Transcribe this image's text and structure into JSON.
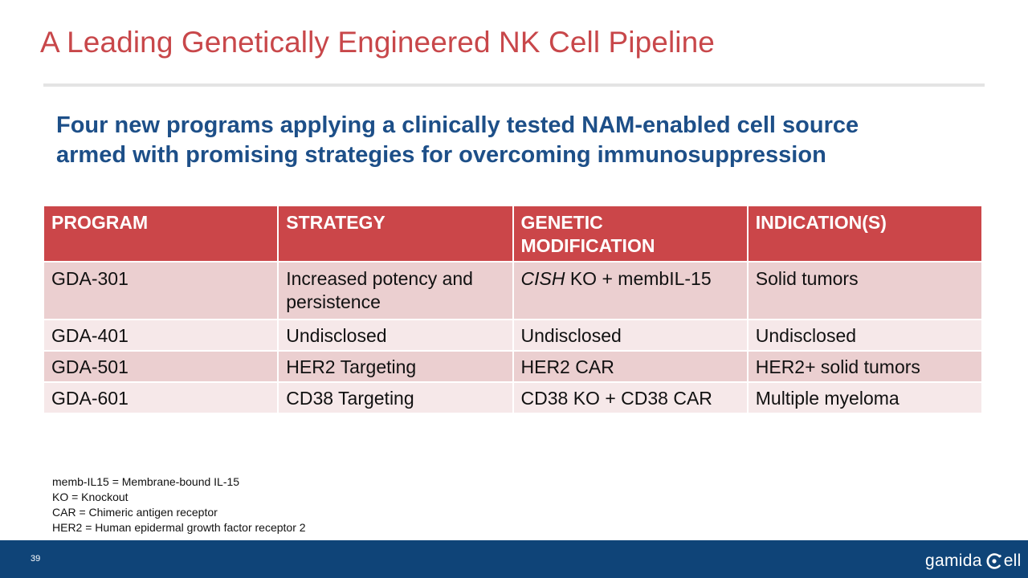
{
  "slide": {
    "title": "A Leading Genetically Engineered NK Cell Pipeline",
    "subtitle_line1": "Four new programs applying a clinically tested NAM-enabled cell source",
    "subtitle_line2": "armed with promising strategies for overcoming immunosuppression",
    "page_number": "39"
  },
  "table": {
    "headers": [
      "PROGRAM",
      "STRATEGY",
      "GENETIC MODIFICATION",
      "INDICATION(S)"
    ],
    "rows": [
      {
        "program": "GDA-301",
        "strategy": "Increased potency and persistence",
        "modification_gene": "CISH",
        "modification_rest": " KO + membIL-15",
        "indication": "Solid tumors"
      },
      {
        "program": "GDA-401",
        "strategy": "Undisclosed",
        "modification": "Undisclosed",
        "indication": "Undisclosed"
      },
      {
        "program": "GDA-501",
        "strategy": "HER2 Targeting",
        "modification": "HER2 CAR",
        "indication": "HER2+ solid tumors"
      },
      {
        "program": "GDA-601",
        "strategy": "CD38 Targeting",
        "modification": "CD38 KO + CD38 CAR",
        "indication": "Multiple myeloma"
      }
    ]
  },
  "footnotes": [
    "memb-IL15 = Membrane-bound IL-15",
    "KO = Knockout",
    "CAR = Chimeric antigen receptor",
    "HER2 = Human epidermal growth factor receptor 2"
  ],
  "logo": {
    "text_left": "gamida",
    "text_right": "ell",
    "icon": "cell-c-icon"
  },
  "colors": {
    "title_red": "#c8474a",
    "subtitle_blue": "#1d4f88",
    "header_red": "#cb4649",
    "row_dark": "#ebcfd0",
    "row_light": "#f6e8e9",
    "footer_blue": "#0f4478"
  }
}
